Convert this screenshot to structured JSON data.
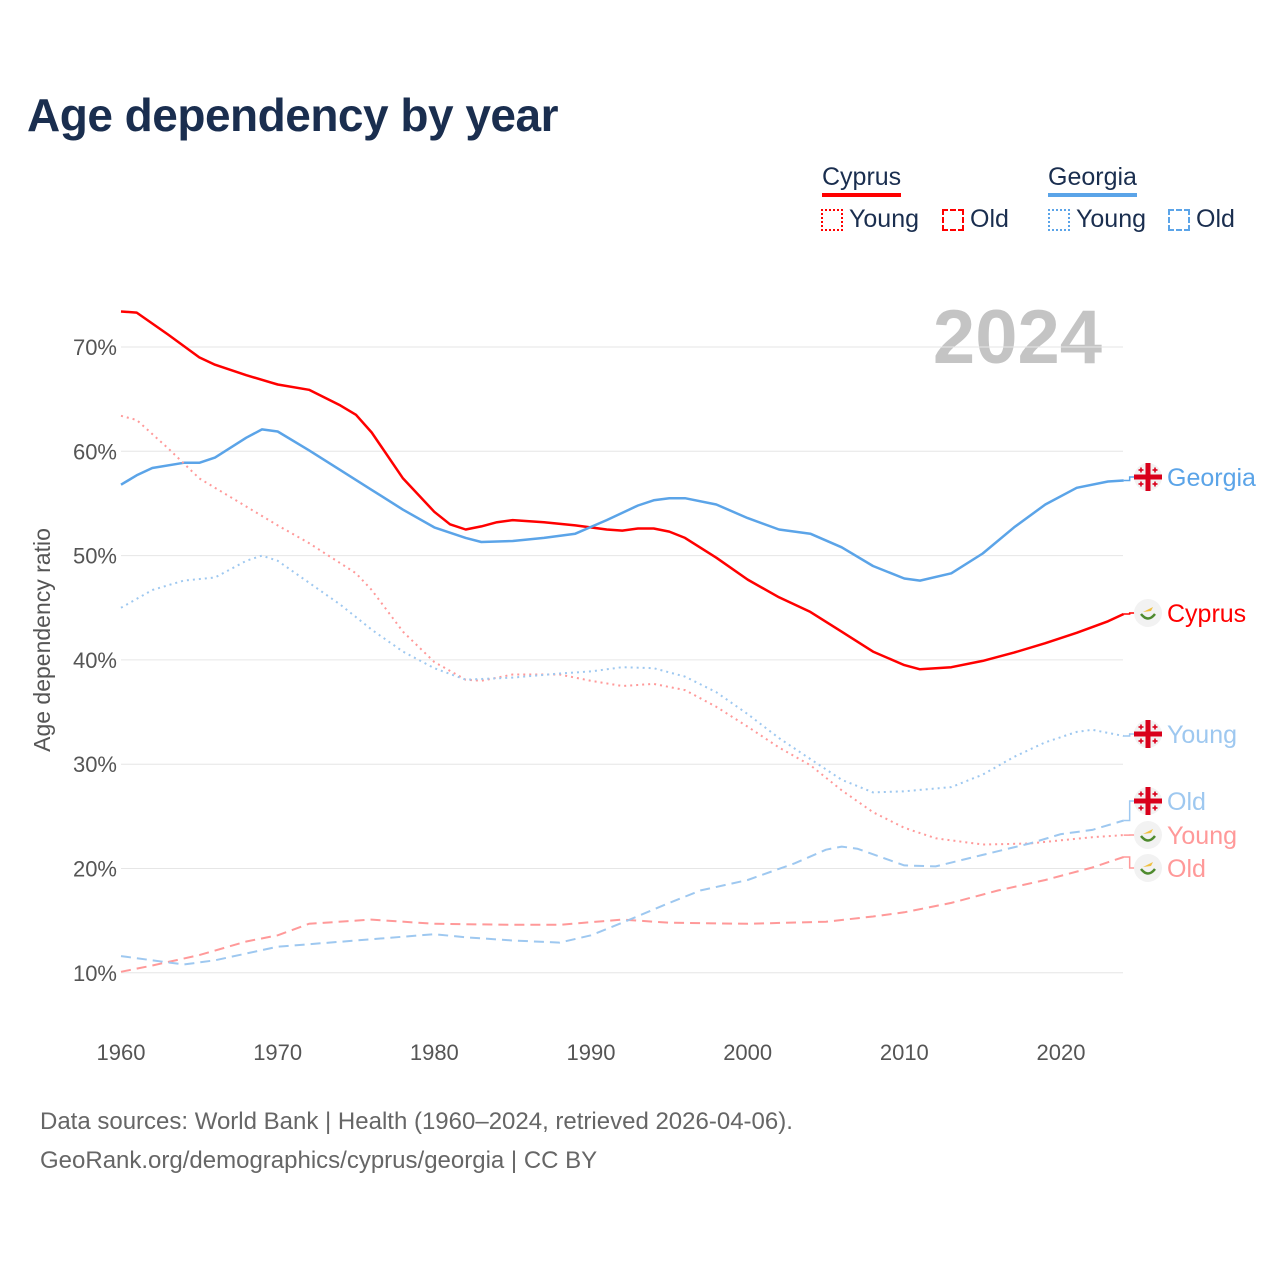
{
  "title": "Age dependency by year",
  "legend": {
    "countries": [
      {
        "name": "Cyprus",
        "color": "#ff0000",
        "light": "#ff9999",
        "items": [
          "Young",
          "Old"
        ]
      },
      {
        "name": "Georgia",
        "color": "#5ba4e8",
        "light": "#9ec8f0",
        "items": [
          "Young",
          "Old"
        ]
      }
    ]
  },
  "year_watermark": "2024",
  "footer": {
    "line1": "Data sources: World Bank | Health (1960–2024, retrieved 2026-04-06).",
    "line2": "GeoRank.org/demographics/cyprus/georgia | CC BY"
  },
  "chart_data": {
    "type": "line",
    "title": "Age dependency by year",
    "xlabel": "",
    "ylabel": "Age dependency ratio",
    "xlim": [
      1960,
      2024
    ],
    "ylim": [
      10,
      70
    ],
    "xticks": [
      1960,
      1970,
      1980,
      1990,
      2000,
      2010,
      2020
    ],
    "yticks": [
      10,
      20,
      30,
      40,
      50,
      60,
      70
    ],
    "ytick_labels": [
      "10%",
      "20%",
      "30%",
      "40%",
      "50%",
      "60%",
      "70%"
    ],
    "grid": true,
    "legend_position": "top-right",
    "series": [
      {
        "name": "Cyprus",
        "end_label": "Cyprus",
        "country": "cyprus",
        "style": "solid",
        "color": "#ff0000",
        "x": [
          1960,
          1961,
          1963,
          1965,
          1966,
          1968,
          1970,
          1972,
          1974,
          1975,
          1976,
          1978,
          1980,
          1981,
          1982,
          1983,
          1984,
          1985,
          1987,
          1989,
          1991,
          1992,
          1993,
          1994,
          1995,
          1996,
          1998,
          2000,
          2002,
          2004,
          2006,
          2008,
          2010,
          2011,
          2013,
          2015,
          2017,
          2019,
          2021,
          2023,
          2024
        ],
        "y": [
          73.4,
          73.3,
          71.2,
          69.0,
          68.3,
          67.3,
          66.4,
          65.9,
          64.4,
          63.5,
          61.8,
          57.4,
          54.2,
          53.0,
          52.5,
          52.8,
          53.2,
          53.4,
          53.2,
          52.9,
          52.5,
          52.4,
          52.6,
          52.6,
          52.3,
          51.7,
          49.8,
          47.7,
          46.0,
          44.6,
          42.7,
          40.8,
          39.5,
          39.1,
          39.3,
          39.9,
          40.7,
          41.6,
          42.6,
          43.7,
          44.4
        ]
      },
      {
        "name": "Georgia",
        "end_label": "Georgia",
        "country": "georgia",
        "style": "solid",
        "color": "#5ba4e8",
        "x": [
          1960,
          1961,
          1962,
          1964,
          1965,
          1966,
          1968,
          1969,
          1970,
          1972,
          1974,
          1976,
          1978,
          1980,
          1982,
          1983,
          1985,
          1987,
          1989,
          1991,
          1993,
          1994,
          1995,
          1996,
          1998,
          2000,
          2002,
          2004,
          2006,
          2008,
          2010,
          2011,
          2013,
          2015,
          2017,
          2019,
          2021,
          2023,
          2024
        ],
        "y": [
          56.8,
          57.7,
          58.4,
          58.9,
          58.9,
          59.4,
          61.3,
          62.1,
          61.9,
          60.1,
          58.2,
          56.3,
          54.4,
          52.7,
          51.7,
          51.3,
          51.4,
          51.7,
          52.1,
          53.4,
          54.8,
          55.3,
          55.5,
          55.5,
          54.9,
          53.6,
          52.5,
          52.1,
          50.8,
          49.0,
          47.8,
          47.6,
          48.3,
          50.2,
          52.7,
          54.9,
          56.5,
          57.1,
          57.2
        ]
      },
      {
        "name": "Cyprus Young",
        "end_label": "Young",
        "country": "cyprus",
        "style": "dotted",
        "color": "#ff9999",
        "x": [
          1960,
          1961,
          1963,
          1965,
          1967,
          1970,
          1972,
          1975,
          1976,
          1978,
          1980,
          1982,
          1983,
          1985,
          1988,
          1990,
          1992,
          1994,
          1996,
          1998,
          2000,
          2002,
          2004,
          2006,
          2008,
          2010,
          2012,
          2015,
          2018,
          2020,
          2022,
          2024
        ],
        "y": [
          63.4,
          63.0,
          60.3,
          57.4,
          55.6,
          52.9,
          51.2,
          48.3,
          46.7,
          42.7,
          39.8,
          38.1,
          38.0,
          38.6,
          38.6,
          38.0,
          37.5,
          37.7,
          37.1,
          35.5,
          33.6,
          31.6,
          29.9,
          27.5,
          25.4,
          23.9,
          22.9,
          22.3,
          22.4,
          22.7,
          23.0,
          23.2
        ]
      },
      {
        "name": "Georgia Young",
        "end_label": "Young",
        "country": "georgia",
        "style": "dotted",
        "color": "#9ec8f0",
        "x": [
          1960,
          1962,
          1964,
          1966,
          1968,
          1969,
          1970,
          1972,
          1974,
          1976,
          1978,
          1980,
          1982,
          1985,
          1988,
          1990,
          1992,
          1994,
          1996,
          1998,
          2000,
          2002,
          2004,
          2006,
          2008,
          2010,
          2013,
          2015,
          2017,
          2019,
          2021,
          2022,
          2024
        ],
        "y": [
          45.0,
          46.7,
          47.6,
          47.9,
          49.5,
          50.0,
          49.5,
          47.4,
          45.3,
          42.9,
          40.8,
          39.2,
          38.1,
          38.3,
          38.7,
          38.9,
          39.3,
          39.2,
          38.4,
          36.9,
          34.8,
          32.5,
          30.5,
          28.5,
          27.3,
          27.4,
          27.8,
          29.0,
          30.7,
          32.1,
          33.1,
          33.3,
          32.7
        ]
      },
      {
        "name": "Cyprus Old",
        "end_label": "Old",
        "country": "cyprus",
        "style": "dashed",
        "color": "#ff9999",
        "x": [
          1960,
          1962,
          1965,
          1968,
          1970,
          1972,
          1975,
          1976,
          1980,
          1985,
          1988,
          1992,
          1995,
          2000,
          2005,
          2008,
          2010,
          2013,
          2016,
          2019,
          2022,
          2024
        ],
        "y": [
          10.1,
          10.7,
          11.7,
          13.0,
          13.6,
          14.7,
          15.0,
          15.1,
          14.7,
          14.6,
          14.6,
          15.1,
          14.8,
          14.7,
          14.9,
          15.4,
          15.8,
          16.7,
          17.9,
          18.9,
          20.1,
          21.1
        ]
      },
      {
        "name": "Georgia Old",
        "end_label": "Old",
        "country": "georgia",
        "style": "dashed",
        "color": "#9ec8f0",
        "x": [
          1960,
          1962,
          1964,
          1966,
          1970,
          1975,
          1980,
          1982,
          1985,
          1988,
          1990,
          1992,
          1995,
          1997,
          2000,
          2003,
          2005,
          2006,
          2007,
          2010,
          2012,
          2015,
          2018,
          2020,
          2022,
          2024
        ],
        "y": [
          11.6,
          11.2,
          10.8,
          11.2,
          12.5,
          13.1,
          13.7,
          13.4,
          13.1,
          12.9,
          13.6,
          14.8,
          16.7,
          17.9,
          18.9,
          20.5,
          21.8,
          22.1,
          21.9,
          20.3,
          20.2,
          21.3,
          22.4,
          23.3,
          23.7,
          24.6
        ]
      }
    ]
  }
}
